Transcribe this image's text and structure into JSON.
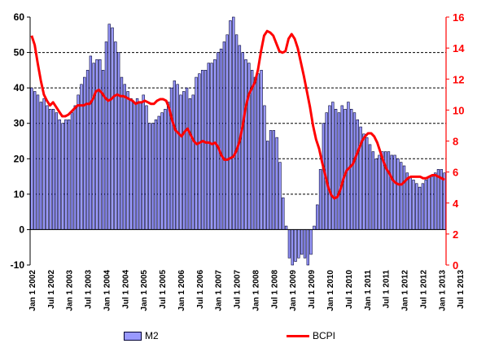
{
  "chart_data": {
    "type": "bar+line",
    "title": "",
    "xlabel": "",
    "left_axis": {
      "ylim": [
        -10,
        60
      ],
      "ticks": [
        "-10",
        "0",
        "10",
        "20",
        "30",
        "40",
        "50",
        "60"
      ]
    },
    "right_axis": {
      "ylim": [
        0,
        16
      ],
      "ticks": [
        "0",
        "2",
        "4",
        "6",
        "8",
        "10",
        "12",
        "14",
        "16"
      ]
    },
    "x_tick_labels": [
      "Jan 1 2002",
      "Jul 1 2002",
      "Jan 1 2003",
      "Jul 1 2003",
      "Jan 1 2004",
      "Jul 1 2004",
      "Jan 1 2005",
      "Jul 1 2005",
      "Jan 1 2006",
      "Jul 1 2006",
      "Jan 1 2007",
      "Jul 1 2007",
      "Jan 1 2008",
      "Jul 1 2008",
      "Jan 1 2009",
      "Jul 1 2009",
      "Jan 1 2010",
      "Jul 1 2010",
      "Jan 1 2011",
      "Jul 1 2011",
      "Jan 1 2012",
      "Jul 1 2012",
      "Jan 1 2013",
      "Jul 1 2013"
    ],
    "grid": "horizontal dashed",
    "legend_position": "bottom",
    "series": [
      {
        "name": "M2",
        "type": "bar",
        "axis": "left",
        "color": "#9999ff",
        "edge_color": "#000033",
        "values": [
          40,
          39,
          38,
          36,
          37,
          35,
          34,
          34,
          33,
          31,
          30,
          31,
          31,
          33,
          35,
          38,
          41,
          43,
          45,
          49,
          47,
          48,
          48,
          45,
          53,
          58,
          57,
          53,
          50,
          43,
          41,
          39,
          37,
          36,
          37,
          36,
          38,
          35,
          30,
          30,
          31,
          32,
          33,
          34,
          36,
          40,
          42,
          41,
          38,
          39,
          40,
          37,
          38,
          43,
          44,
          45,
          45,
          47,
          47,
          48,
          50,
          51,
          53,
          55,
          59,
          60,
          55,
          52,
          50,
          48,
          47,
          45,
          43,
          44,
          45,
          35,
          25,
          28,
          28,
          26,
          19,
          9,
          1,
          -8,
          -10,
          -9,
          -8,
          -7,
          -8,
          -10,
          -7,
          1,
          7,
          17,
          30,
          33,
          35,
          36,
          34,
          33,
          35,
          34,
          36,
          34,
          33,
          31,
          29,
          27,
          26,
          24,
          22,
          20,
          21,
          22,
          22,
          22,
          21,
          21,
          20,
          19,
          18,
          16,
          15,
          14,
          13,
          12,
          13,
          14,
          15,
          15,
          16,
          17,
          17,
          16
        ]
      },
      {
        "name": "BCPI",
        "type": "line",
        "axis": "right",
        "color": "#ff0000",
        "values": [
          14.8,
          14.2,
          13.0,
          11.9,
          11.0,
          10.6,
          10.3,
          10.5,
          10.2,
          9.9,
          9.6,
          9.6,
          9.7,
          9.9,
          10.1,
          10.3,
          10.3,
          10.3,
          10.4,
          10.4,
          10.7,
          11.2,
          11.3,
          11.1,
          10.8,
          10.6,
          10.7,
          10.9,
          11.0,
          10.9,
          10.9,
          10.8,
          10.7,
          10.6,
          10.4,
          10.5,
          10.5,
          10.6,
          10.5,
          10.4,
          10.4,
          10.6,
          10.7,
          10.7,
          10.6,
          10.1,
          9.3,
          8.7,
          8.5,
          8.3,
          8.6,
          8.8,
          8.4,
          8.0,
          7.8,
          7.9,
          8.0,
          7.9,
          7.9,
          7.8,
          7.9,
          7.6,
          7.1,
          6.8,
          6.8,
          6.9,
          7.0,
          7.4,
          8.0,
          9.0,
          10.2,
          11.0,
          11.4,
          11.8,
          12.6,
          13.8,
          14.8,
          15.1,
          15.0,
          14.8,
          14.3,
          13.8,
          13.7,
          13.8,
          14.6,
          14.9,
          14.6,
          14.0,
          13.1,
          12.2,
          11.2,
          10.2,
          9.0,
          8.1,
          7.5,
          6.6,
          5.8,
          5.0,
          4.5,
          4.3,
          4.4,
          4.9,
          5.6,
          6.1,
          6.3,
          6.5,
          7.0,
          7.5,
          8.0,
          8.3,
          8.5,
          8.5,
          8.3,
          7.9,
          7.3,
          6.7,
          6.2,
          5.9,
          5.5,
          5.3,
          5.2,
          5.2,
          5.4,
          5.6,
          5.7,
          5.7,
          5.7,
          5.7,
          5.6,
          5.6,
          5.7,
          5.8,
          5.8,
          5.7,
          5.6,
          5.5
        ]
      }
    ]
  },
  "legend": {
    "m2_label": "M2",
    "bcpi_label": "BCPI"
  },
  "colors": {
    "bar_fill": "#9999ff",
    "bar_edge": "#000033",
    "line": "#ff0000",
    "left_axis_text": "#000000",
    "right_axis_text": "#ff0000",
    "grid": "#000000"
  }
}
